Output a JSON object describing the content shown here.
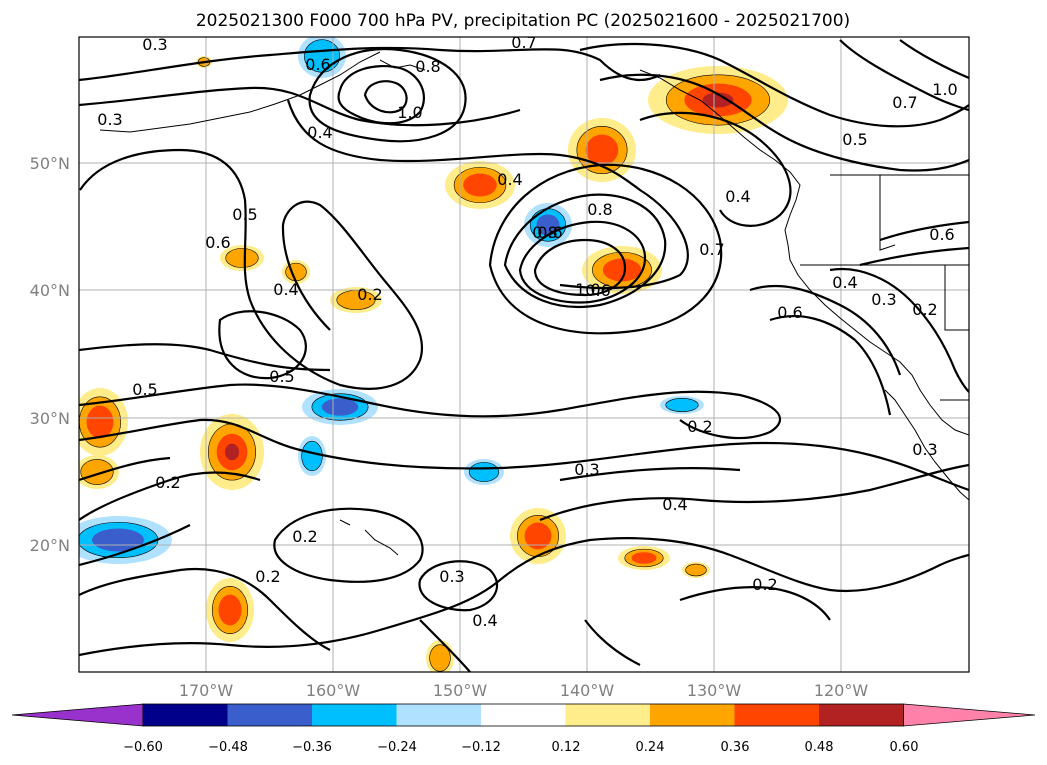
{
  "title": "2025021300 F000 700 hPa PV, precipitation PC (2025021600 - 2025021700)",
  "map": {
    "lat_labels": [
      "50°N",
      "40°N",
      "30°N",
      "20°N"
    ],
    "lon_labels": [
      "170°W",
      "160°W",
      "150°W",
      "140°W",
      "130°W",
      "120°W"
    ],
    "gridlines": true
  },
  "contour_labels": [
    "0.3",
    "0.7",
    "0.6",
    "0.8",
    "1.0",
    "0.3",
    "0.4",
    "0.4",
    "0.8",
    "1.0",
    "0.7",
    "0.5",
    "0.5",
    "0.6",
    "0.8",
    "0.4",
    "0.6",
    "0.7",
    "0.6",
    "0.4",
    "0.3",
    "0.2",
    "0.2",
    "0.6",
    "1.0",
    "0.4",
    "0.6",
    "0.5",
    "0.5",
    "0.2",
    "0.3",
    "0.4",
    "0.3",
    "0.2",
    "0.2",
    "0.2",
    "0.3",
    "0.4",
    "0.2"
  ],
  "colorbar": {
    "ticks": [
      "−0.60",
      "−0.48",
      "−0.36",
      "−0.24",
      "−0.12",
      "0.12",
      "0.24",
      "0.36",
      "0.48",
      "0.60"
    ],
    "colors": [
      "#9932CC",
      "#00008B",
      "#3A5FCD",
      "#00BFFF",
      "#B0E2FF",
      "#FFFFFF",
      "#FFEC8B",
      "#FFA500",
      "#FF4500",
      "#B22222",
      "#FF82AB"
    ]
  },
  "precip_colors": {
    "neg_light": "#B0E2FF",
    "neg_mid": "#00BFFF",
    "neg_strong": "#3A5FCD",
    "pos_light": "#FFEC8B",
    "pos_mid": "#FFA500",
    "pos_strong": "#FF4500",
    "pos_very": "#B22222"
  }
}
